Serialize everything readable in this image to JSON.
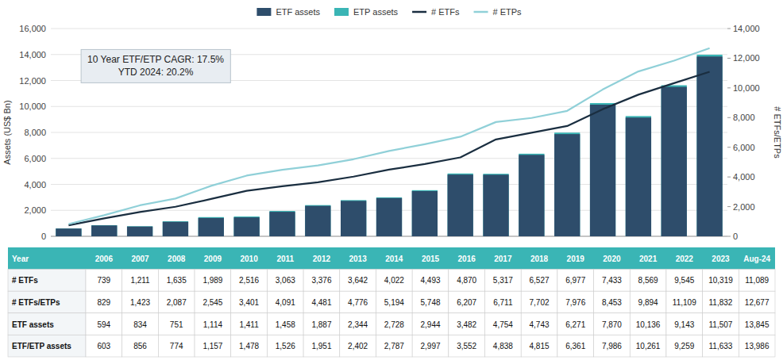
{
  "chart_data": [
    {
      "type": "bar",
      "categories": [
        "2006",
        "2007",
        "2008",
        "2009",
        "2010",
        "2011",
        "2012",
        "2013",
        "2014",
        "2015",
        "2016",
        "2017",
        "2018",
        "2019",
        "2020",
        "2021",
        "2022",
        "2023",
        "Aug-24"
      ],
      "series": [
        {
          "name": "ETF assets",
          "type": "bar",
          "color": "#2e4d6b",
          "values": [
            594,
            834,
            751,
            1114,
            1411,
            1458,
            1887,
            2344,
            2728,
            2944,
            3482,
            4754,
            4743,
            6271,
            7870,
            10136,
            9143,
            11507,
            13845
          ]
        },
        {
          "name": "ETP assets",
          "type": "bar",
          "color": "#3ab5b5",
          "values": [
            603,
            856,
            774,
            1157,
            1478,
            1526,
            1951,
            2402,
            2787,
            2997,
            3552,
            4838,
            4815,
            6361,
            7986,
            10261,
            9259,
            11633,
            13986
          ]
        },
        {
          "name": "# ETFs",
          "type": "line",
          "axis": "y2",
          "color": "#1a2e40",
          "values": [
            739,
            1211,
            1635,
            1989,
            2516,
            3063,
            3376,
            3642,
            4022,
            4493,
            4870,
            5317,
            6527,
            6977,
            7433,
            8569,
            9545,
            10319,
            11089
          ]
        },
        {
          "name": "# ETPs",
          "type": "line",
          "axis": "y2",
          "color": "#90d0d8",
          "values": [
            829,
            1423,
            2087,
            2545,
            3401,
            4091,
            4481,
            4776,
            5194,
            5748,
            6207,
            6711,
            7702,
            7976,
            8453,
            9894,
            11109,
            11832,
            12677
          ]
        }
      ],
      "stacked": false,
      "ylabel": "Assets (US$ Bn)",
      "y2label": "# ETFs/ETPs",
      "ylim": [
        0,
        16000
      ],
      "yticks": [
        0,
        {
          "value": 2000,
          "label": "2,000"
        },
        {
          "value": 4000,
          "label": "4,000"
        },
        {
          "value": 6000,
          "label": "6,000"
        },
        {
          "value": 8000,
          "label": "8,000"
        },
        {
          "value": 10000,
          "label": "10,000"
        },
        {
          "value": 12000,
          "label": "12,000"
        },
        {
          "value": 14000,
          "label": "14,000"
        },
        {
          "value": 16000,
          "label": "16,000"
        }
      ],
      "y2lim": [
        0,
        14000
      ],
      "y2ticks": [
        0,
        {
          "value": 2000,
          "label": "2,000"
        },
        {
          "value": 4000,
          "label": "4,000"
        },
        {
          "value": 6000,
          "label": "6,000"
        },
        {
          "value": 8000,
          "label": "8,000"
        },
        {
          "value": 10000,
          "label": "10,000"
        },
        {
          "value": 12000,
          "label": "12,000"
        },
        {
          "value": 14000,
          "label": "14,000"
        }
      ],
      "grid": true,
      "legend": "top",
      "tick_labels": "y",
      "annotation": "10 Year ETF/ETP CAGR: 17.5%\nYTD 2024: 20.2%"
    },
    {
      "type": "table",
      "color": "#3ab5b5",
      "header": "Year",
      "categories": [
        "2006",
        "2007",
        "2008",
        "2009",
        "2010",
        "2011",
        "2012",
        "2013",
        "2014",
        "2015",
        "2016",
        "2017",
        "2018",
        "2019",
        "2020",
        "2021",
        "2022",
        "2023",
        "Aug-24"
      ],
      "rows": [
        {
          "name": "# ETFs",
          "values": [
            739,
            1211,
            1635,
            1989,
            2516,
            3063,
            3376,
            3642,
            4022,
            4493,
            4870,
            5317,
            6527,
            6977,
            7433,
            8569,
            9545,
            10319,
            11089
          ],
          "value_labels": [
            "739",
            "1,211",
            "1,635",
            "1,989",
            "2,516",
            "3,063",
            "3,376",
            "3,642",
            "4,022",
            "4,493",
            "4,870",
            "5,317",
            "6,527",
            "6,977",
            "7,433",
            "8,569",
            "9,545",
            "10,319",
            "11,089"
          ]
        },
        {
          "name": "# ETFs/ETPs",
          "values": [
            829,
            1423,
            2087,
            2545,
            3401,
            4091,
            4481,
            4776,
            5194,
            5748,
            6207,
            6711,
            7702,
            7976,
            8453,
            9894,
            11109,
            11832,
            12677
          ],
          "value_labels": [
            "829",
            "1,423",
            "2,087",
            "2,545",
            "3,401",
            "4,091",
            "4,481",
            "4,776",
            "5,194",
            "5,748",
            "6,207",
            "6,711",
            "7,702",
            "7,976",
            "8,453",
            "9,894",
            "11,109",
            "11,832",
            "12,677"
          ]
        },
        {
          "name": "ETF assets",
          "values": [
            594,
            834,
            751,
            1114,
            1411,
            1458,
            1887,
            2344,
            2728,
            2944,
            3482,
            4754,
            4743,
            6271,
            7870,
            10136,
            9143,
            11507,
            13845
          ],
          "value_labels": [
            "594",
            "834",
            "751",
            "1,114",
            "1,411",
            "1,458",
            "1,887",
            "2,344",
            "2,728",
            "2,944",
            "3,482",
            "4,754",
            "4,743",
            "6,271",
            "7,870",
            "10,136",
            "9,143",
            "11,507",
            "13,845"
          ]
        },
        {
          "name": "ETF/ETP assets",
          "values": [
            603,
            856,
            774,
            1157,
            1478,
            1526,
            1951,
            2402,
            2787,
            2997,
            3552,
            4838,
            4815,
            6361,
            7986,
            10261,
            9259,
            11633,
            13986
          ],
          "value_labels": [
            "603",
            "856",
            "774",
            "1,157",
            "1,478",
            "1,526",
            "1,951",
            "2,402",
            "2,787",
            "2,997",
            "3,552",
            "4,838",
            "4,815",
            "6,361",
            "7,986",
            "10,261",
            "9,259",
            "11,633",
            "13,986"
          ]
        }
      ]
    }
  ]
}
